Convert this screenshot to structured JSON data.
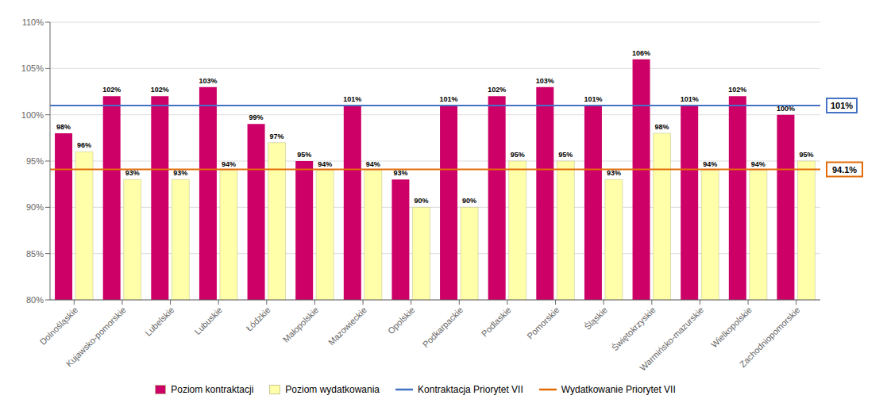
{
  "chart_data": {
    "type": "bar",
    "categories": [
      "Dolnośląskie",
      "Kujawsko-pomorskie",
      "Lubelskie",
      "Lubuskie",
      "Łódzkie",
      "Małopolskie",
      "Mazowieckie",
      "Opolskie",
      "Podkarpackie",
      "Podlaskie",
      "Pomorskie",
      "Śląskie",
      "Świętokrzyskie",
      "Warmińsko-mazurskie",
      "Wielkopolskie",
      "Zachodniopomorskie"
    ],
    "series": [
      {
        "name": "Poziom kontraktacji",
        "color": "#CC0066",
        "values": [
          98,
          102,
          102,
          103,
          99,
          95,
          101,
          93,
          101,
          102,
          103,
          101,
          106,
          101,
          102,
          100
        ],
        "value_labels": [
          "98%",
          "102%",
          "102%",
          "103%",
          "99%",
          "95%",
          "101%",
          "93%",
          "101%",
          "102%",
          "103%",
          "101%",
          "106%",
          "101%",
          "102%",
          "100%"
        ]
      },
      {
        "name": "Poziom wydatkowania",
        "color": "#FFFFAA",
        "values": [
          96,
          93,
          93,
          94,
          97,
          94,
          94,
          90,
          90,
          95,
          95,
          93,
          98,
          94,
          94,
          95
        ],
        "value_labels": [
          "96%",
          "93%",
          "93%",
          "94%",
          "97%",
          "94%",
          "94%",
          "90%",
          "90%",
          "95%",
          "95%",
          "93%",
          "98%",
          "94%",
          "94%",
          "95%"
        ]
      }
    ],
    "reference_lines": [
      {
        "name": "Kontraktacja Priorytet VII",
        "value": 101,
        "value_label": "101%",
        "color": "#4472C4"
      },
      {
        "name": "Wydatkowanie Priorytet VII",
        "value": 94.1,
        "value_label": "94.1%",
        "color": "#E36C09"
      }
    ],
    "ylim": [
      80,
      110
    ],
    "yticks": [
      {
        "value": 80,
        "label": "80%"
      },
      {
        "value": 85,
        "label": "85%"
      },
      {
        "value": 90,
        "label": "90%"
      },
      {
        "value": 95,
        "label": "95%"
      },
      {
        "value": 100,
        "label": "100%"
      },
      {
        "value": 105,
        "label": "105%"
      },
      {
        "value": 110,
        "label": "110%"
      }
    ],
    "grid": true,
    "legend": "bottom",
    "data_labels": true
  }
}
